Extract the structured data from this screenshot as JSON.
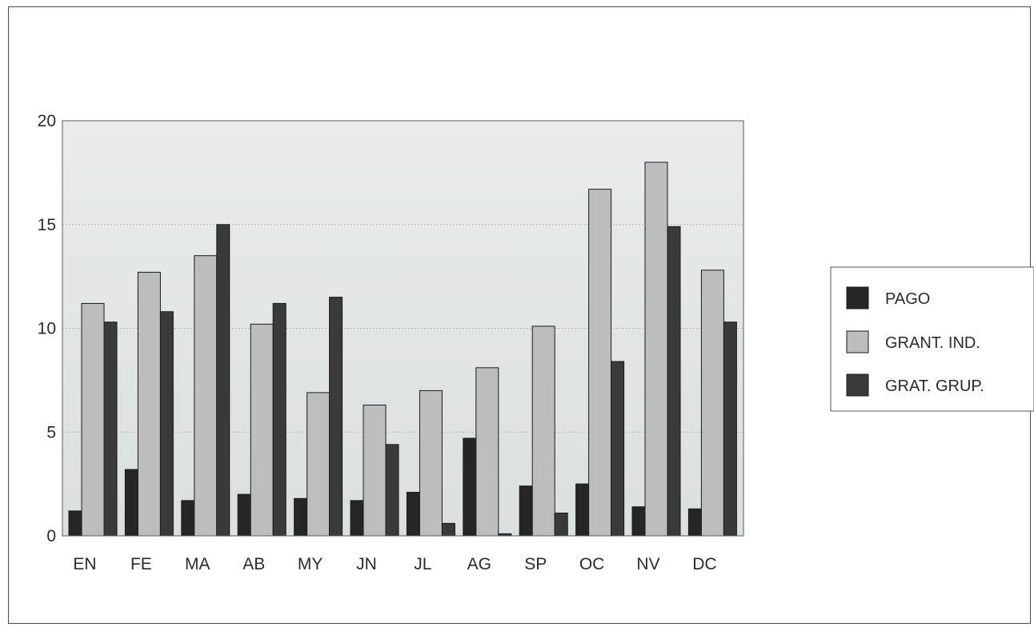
{
  "chart_data": {
    "type": "bar",
    "categories": [
      "EN",
      "FE",
      "MA",
      "AB",
      "MY",
      "JN",
      "JL",
      "AG",
      "SP",
      "OC",
      "NV",
      "DC"
    ],
    "series": [
      {
        "name": "PAGO",
        "values": [
          1.2,
          3.2,
          1.7,
          2.0,
          1.8,
          1.7,
          2.1,
          4.7,
          2.4,
          2.5,
          1.4,
          1.3
        ],
        "color": "#262626"
      },
      {
        "name": "GRANT. IND.",
        "values": [
          11.2,
          12.7,
          13.5,
          10.2,
          6.9,
          6.3,
          7.0,
          8.1,
          10.1,
          16.7,
          18.0,
          12.8
        ],
        "color": "#bdbdbd"
      },
      {
        "name": "GRAT. GRUP.",
        "values": [
          10.3,
          10.8,
          15.0,
          11.2,
          11.5,
          4.4,
          0.6,
          0.1,
          1.1,
          8.4,
          14.9,
          10.3
        ],
        "color": "#3a3a3a"
      }
    ],
    "y_ticks": [
      "0",
      "5",
      "10",
      "15",
      "20"
    ],
    "ylim": [
      0,
      20
    ],
    "grid": true,
    "legend_position": "right"
  }
}
